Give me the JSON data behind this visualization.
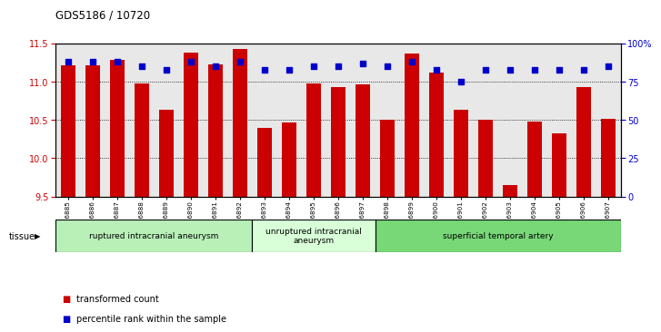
{
  "title": "GDS5186 / 10720",
  "samples": [
    "GSM1306885",
    "GSM1306886",
    "GSM1306887",
    "GSM1306888",
    "GSM1306889",
    "GSM1306890",
    "GSM1306891",
    "GSM1306892",
    "GSM1306893",
    "GSM1306894",
    "GSM1306895",
    "GSM1306896",
    "GSM1306897",
    "GSM1306898",
    "GSM1306899",
    "GSM1306900",
    "GSM1306901",
    "GSM1306902",
    "GSM1306903",
    "GSM1306904",
    "GSM1306905",
    "GSM1306906",
    "GSM1306907"
  ],
  "transformed_count": [
    11.22,
    11.22,
    11.28,
    10.98,
    10.63,
    11.38,
    11.23,
    11.43,
    10.4,
    10.47,
    10.98,
    10.93,
    10.97,
    10.5,
    11.37,
    11.12,
    10.63,
    10.5,
    9.65,
    10.48,
    10.33,
    10.93,
    10.51
  ],
  "percentile_rank": [
    88,
    88,
    88,
    85,
    83,
    88,
    85,
    88,
    83,
    83,
    85,
    85,
    87,
    85,
    88,
    83,
    75,
    83,
    83,
    83,
    83,
    83,
    85
  ],
  "groups": [
    {
      "label": "ruptured intracranial aneurysm",
      "start": 0,
      "end": 8,
      "color": "#b8f0b8"
    },
    {
      "label": "unruptured intracranial\naneurysm",
      "start": 8,
      "end": 13,
      "color": "#d8ffd8"
    },
    {
      "label": "superficial temporal artery",
      "start": 13,
      "end": 23,
      "color": "#78d878"
    }
  ],
  "ylim_left": [
    9.5,
    11.5
  ],
  "ylim_right": [
    0,
    100
  ],
  "yticks_left": [
    9.5,
    10.0,
    10.5,
    11.0,
    11.5
  ],
  "yticks_right": [
    0,
    25,
    50,
    75,
    100
  ],
  "bar_color": "#cc0000",
  "dot_color": "#0000cc",
  "bar_width": 0.6,
  "plot_bg_color": "#e8e8e8",
  "legend_items": [
    {
      "label": "transformed count",
      "color": "#cc0000"
    },
    {
      "label": "percentile rank within the sample",
      "color": "#0000cc"
    }
  ],
  "tissue_label": "tissue",
  "dot_size": 25
}
